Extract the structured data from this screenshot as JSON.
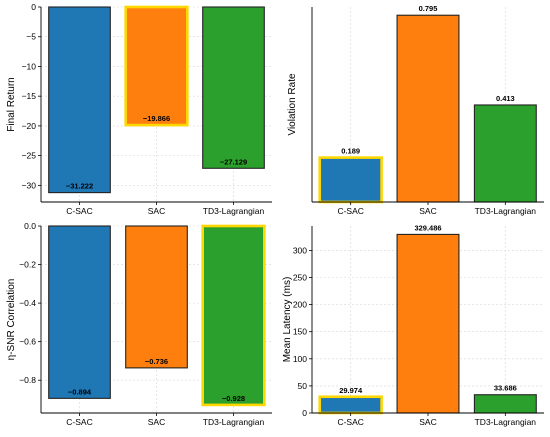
{
  "chart_data": [
    {
      "type": "bar",
      "categories": [
        "C-SAC",
        "SAC",
        "TD3-Lagrangian"
      ],
      "values": [
        -31.222,
        -19.866,
        -27.129
      ],
      "value_labels": [
        "−31.222",
        "−19.866",
        "−27.129"
      ],
      "ylabel": "Final Return",
      "ylim": [
        -32.8,
        0
      ],
      "yticks": [
        0,
        -5,
        -10,
        -15,
        -20,
        -25,
        -30
      ],
      "ytick_labels": [
        "0",
        "−5",
        "−10",
        "−15",
        "−20",
        "−25",
        "−30"
      ],
      "highlighted": "SAC",
      "grid": true
    },
    {
      "type": "bar",
      "categories": [
        "C-SAC",
        "SAC",
        "TD3-Lagrangian"
      ],
      "values": [
        0.189,
        0.795,
        0.413
      ],
      "value_labels": [
        "0.189",
        "0.795",
        "0.413"
      ],
      "ylabel": "Violation Rate",
      "ylim": [
        0,
        0.83
      ],
      "yticks": [],
      "ytick_labels": [],
      "highlighted": "C-SAC",
      "grid": true
    },
    {
      "type": "bar",
      "categories": [
        "C-SAC",
        "SAC",
        "TD3-Lagrangian"
      ],
      "values": [
        -0.894,
        -0.736,
        -0.928
      ],
      "value_labels": [
        "−0.894",
        "−0.736",
        "−0.928"
      ],
      "ylabel": "η-SNR Correlation",
      "ylim": [
        -0.97,
        0
      ],
      "yticks": [
        0,
        -0.2,
        -0.4,
        -0.6,
        -0.8
      ],
      "ytick_labels": [
        "0.0",
        "−0.2",
        "−0.4",
        "−0.6",
        "−0.8"
      ],
      "highlighted": "TD3-Lagrangian",
      "grid": true
    },
    {
      "type": "bar",
      "categories": [
        "C-SAC",
        "SAC",
        "TD3-Lagrangian"
      ],
      "values": [
        29.974,
        329.486,
        33.686
      ],
      "value_labels": [
        "29.974",
        "329.486",
        "33.686"
      ],
      "ylabel": "Mean Latency (ms)",
      "ylim": [
        0,
        345
      ],
      "yticks": [
        0,
        50,
        100,
        150,
        200,
        250,
        300
      ],
      "ytick_labels": [
        "0",
        "50",
        "100",
        "150",
        "200",
        "250",
        "300"
      ],
      "highlighted": "C-SAC",
      "grid": true
    }
  ],
  "colors": {
    "C-SAC": "#1f77b4",
    "SAC": "#ff7f0e",
    "TD3-Lagrangian": "#2ca02c",
    "highlight": "#ffd700",
    "edge": "#222222",
    "grid": "#d8d8d8"
  }
}
